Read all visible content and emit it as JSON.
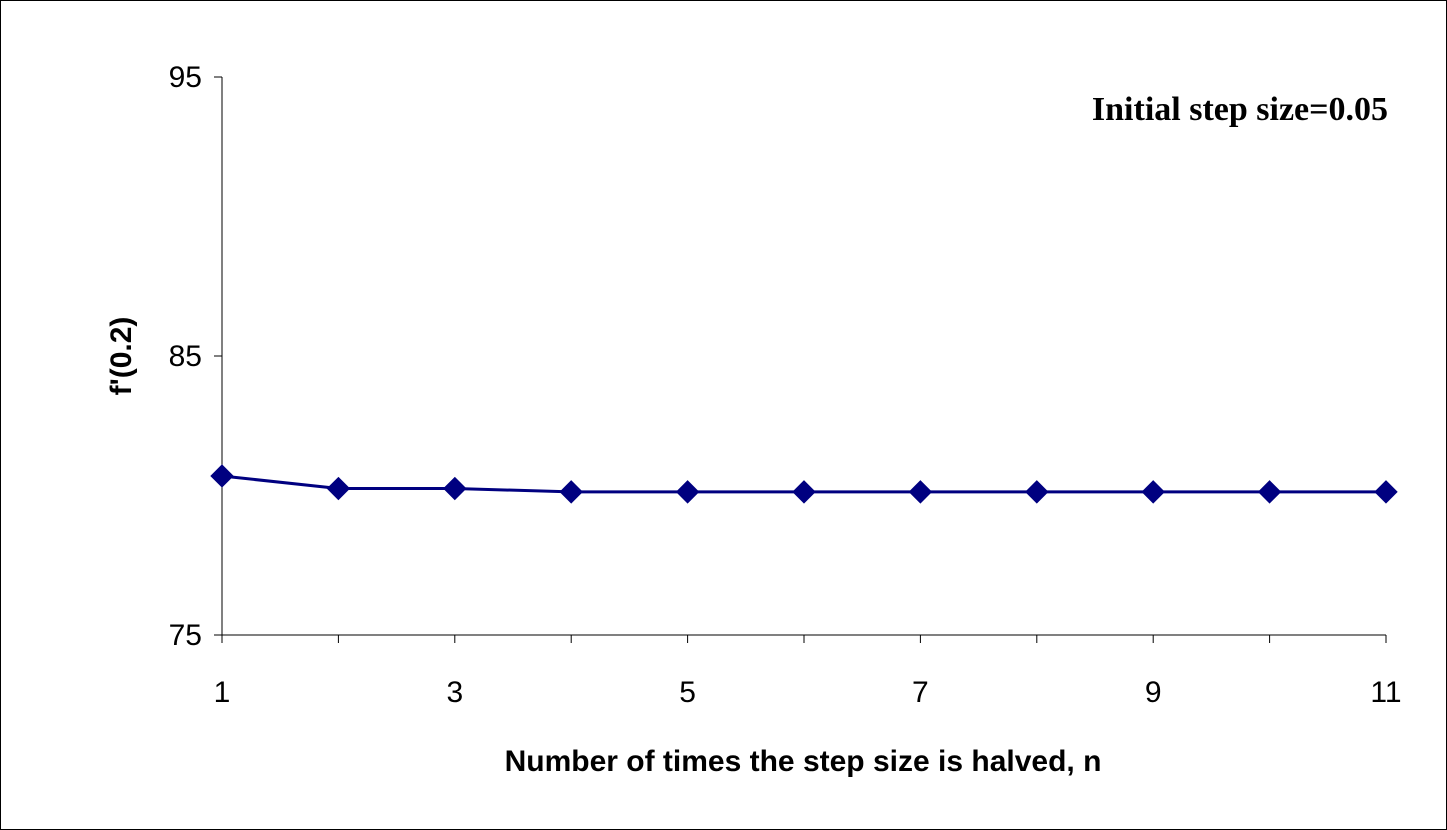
{
  "chart_data": {
    "type": "line",
    "x": [
      1,
      2,
      3,
      4,
      5,
      6,
      7,
      8,
      9,
      10,
      11
    ],
    "series": [
      {
        "values": [
          80.7,
          80.25,
          80.25,
          80.13,
          80.13,
          80.13,
          80.13,
          80.13,
          80.13,
          80.13,
          80.13
        ],
        "color": "#000080",
        "marker": "diamond"
      }
    ],
    "xlabel": "Number of times the step size is halved, n",
    "ylabel": "f'(0.2)",
    "xlim": [
      1,
      11
    ],
    "ylim": [
      75,
      95
    ],
    "x_ticks": [
      "1",
      "3",
      "5",
      "7",
      "9",
      "11"
    ],
    "y_ticks": [
      "75",
      "85",
      "95"
    ],
    "annotation": "Initial step size=0.05",
    "grid": false,
    "legend": "none"
  }
}
